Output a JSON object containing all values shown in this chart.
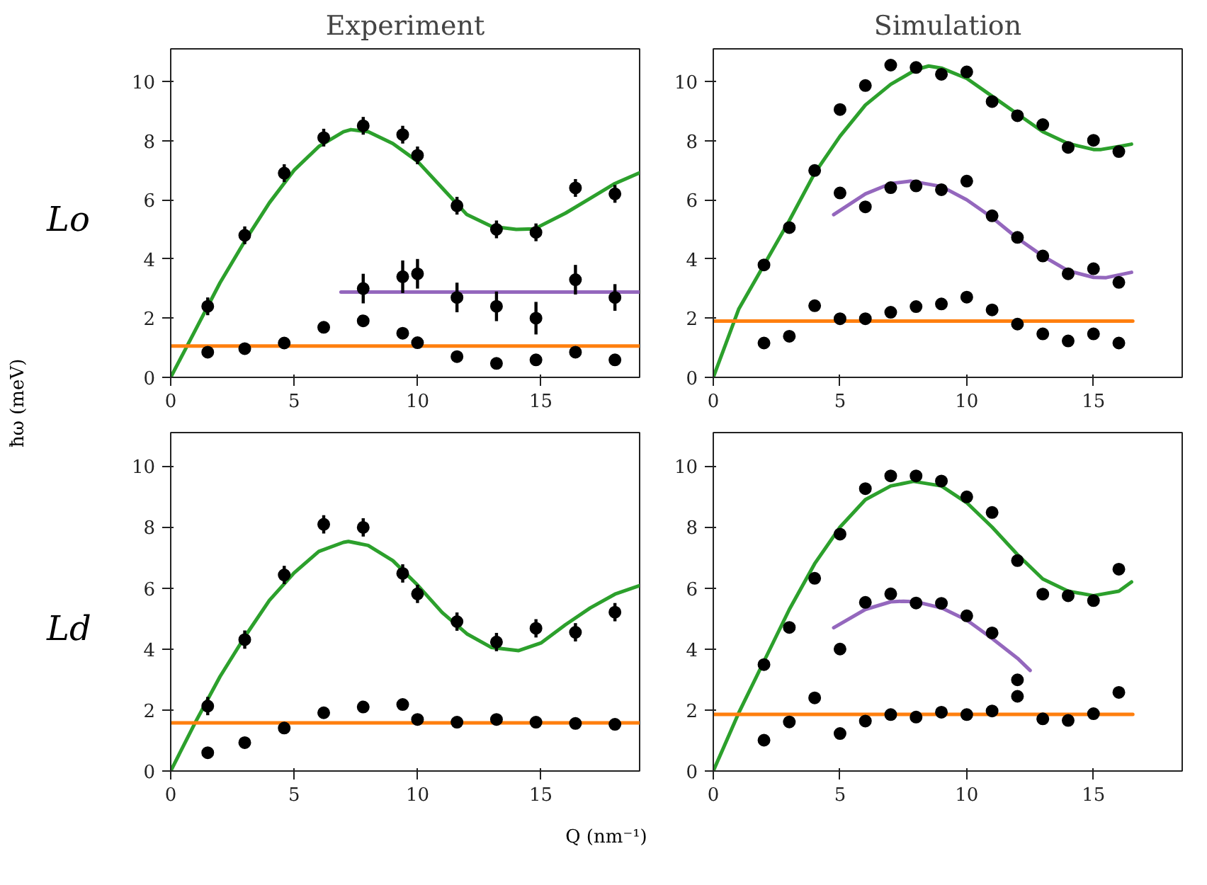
{
  "chart_data": [
    {
      "type": "scatter",
      "title": "Experiment",
      "ylabel": "Lo",
      "annotations": [
        "ħω (meV)"
      ],
      "marker": "circle",
      "xlim": [
        0,
        19
      ],
      "ylim": [
        0,
        11.1
      ],
      "xticks": [
        0,
        5,
        10,
        15
      ],
      "yticks": [
        0,
        2,
        4,
        6,
        8,
        10
      ],
      "series": [
        {
          "type": "line",
          "marker": "none",
          "color": "#2ca02c",
          "x": [
            0,
            1,
            2,
            3,
            4,
            5,
            6,
            7,
            7.3,
            8,
            9,
            10,
            11,
            12,
            13,
            14,
            14.75,
            16,
            17,
            18,
            19
          ],
          "values": [
            0,
            1.6,
            3.2,
            4.6,
            5.9,
            7.0,
            7.8,
            8.3,
            8.37,
            8.3,
            7.9,
            7.3,
            6.4,
            5.5,
            5.1,
            5.0,
            5.02,
            5.55,
            6.05,
            6.55,
            6.91
          ]
        },
        {
          "type": "line",
          "marker": "none",
          "color": "#ff7f0e",
          "x": [
            0,
            19
          ],
          "values": [
            1.06,
            1.06
          ]
        },
        {
          "type": "line",
          "marker": "none",
          "color": "#9467bd",
          "x": [
            6.9,
            19
          ],
          "values": [
            2.88,
            2.88
          ]
        },
        {
          "color": "#000000",
          "x": [
            1.5,
            3,
            4.6,
            6.2,
            7.8,
            9.4,
            10,
            11.6,
            13.2,
            14.8,
            16.4,
            18
          ],
          "values": [
            2.4,
            4.8,
            6.9,
            8.1,
            8.5,
            8.2,
            7.5,
            5.8,
            5.0,
            4.9,
            6.4,
            6.2
          ],
          "errors": [
            0.3,
            0.3,
            0.3,
            0.3,
            0.3,
            0.3,
            0.3,
            0.3,
            0.3,
            0.3,
            0.3,
            0.3
          ]
        },
        {
          "color": "#000000",
          "x": [
            7.8,
            9.4,
            10,
            11.6,
            13.2,
            14.8,
            16.4,
            18
          ],
          "values": [
            3.0,
            3.4,
            3.5,
            2.7,
            2.4,
            2.0,
            3.3,
            2.7
          ],
          "errors": [
            0.5,
            0.55,
            0.5,
            0.5,
            0.5,
            0.55,
            0.5,
            0.45
          ]
        },
        {
          "color": "#000000",
          "x": [
            1.5,
            3,
            4.6,
            6.2,
            7.8,
            9.4,
            10,
            11.6,
            13.2,
            14.8,
            16.4,
            18
          ],
          "values": [
            0.85,
            0.97,
            1.16,
            1.69,
            1.91,
            1.49,
            1.17,
            0.7,
            0.47,
            0.59,
            0.85,
            0.59
          ]
        }
      ]
    },
    {
      "type": "scatter",
      "title": "Simulation",
      "marker": "circle",
      "xlim": [
        0,
        18.5
      ],
      "ylim": [
        0,
        11.1
      ],
      "xticks": [
        0,
        5,
        10,
        15
      ],
      "yticks": [
        0,
        2,
        4,
        6,
        8,
        10
      ],
      "series": [
        {
          "type": "line",
          "marker": "none",
          "color": "#2ca02c",
          "x": [
            0,
            1,
            2,
            3,
            4,
            5,
            6,
            7,
            8,
            8.5,
            9,
            10,
            11,
            12,
            13,
            14,
            15,
            15.3,
            16,
            16.5
          ],
          "values": [
            0,
            2.3,
            3.8,
            5.3,
            6.9,
            8.15,
            9.2,
            9.9,
            10.4,
            10.52,
            10.45,
            10.1,
            9.5,
            8.9,
            8.3,
            7.9,
            7.7,
            7.7,
            7.8,
            7.88
          ]
        },
        {
          "type": "line",
          "marker": "none",
          "color": "#9467bd",
          "x": [
            4.75,
            6,
            7,
            7.8,
            9,
            10,
            11,
            12,
            13,
            14,
            15,
            15.5,
            16.5
          ],
          "values": [
            5.5,
            6.2,
            6.55,
            6.63,
            6.45,
            6.0,
            5.4,
            4.7,
            4.1,
            3.6,
            3.38,
            3.37,
            3.55
          ]
        },
        {
          "type": "line",
          "marker": "none",
          "color": "#ff7f0e",
          "x": [
            0,
            16.55
          ],
          "values": [
            1.9,
            1.9
          ]
        },
        {
          "color": "#000000",
          "x": [
            2,
            3,
            4,
            5,
            6,
            7,
            8,
            9,
            10,
            11,
            12,
            13,
            14,
            15,
            16
          ],
          "values": [
            3.8,
            5.06,
            6.99,
            9.05,
            9.86,
            10.55,
            10.47,
            10.24,
            10.32,
            9.32,
            8.84,
            8.54,
            7.77,
            8.01,
            7.63
          ]
        },
        {
          "color": "#000000",
          "x": [
            5,
            6,
            7,
            8,
            9,
            10,
            11,
            12,
            13,
            14,
            15,
            16
          ],
          "values": [
            6.23,
            5.76,
            6.41,
            6.47,
            6.34,
            6.63,
            5.46,
            4.73,
            4.1,
            3.5,
            3.67,
            3.21
          ]
        },
        {
          "color": "#000000",
          "x": [
            2,
            3,
            4,
            5,
            6,
            7,
            8,
            9,
            10,
            11,
            12,
            13,
            14,
            15,
            16
          ],
          "values": [
            1.16,
            1.39,
            2.42,
            1.98,
            1.98,
            2.2,
            2.39,
            2.48,
            2.71,
            2.28,
            1.8,
            1.47,
            1.23,
            1.47,
            1.16
          ]
        }
      ]
    },
    {
      "type": "scatter",
      "ylabel": "Ld",
      "annotations": [
        "Q (nm⁻¹)"
      ],
      "marker": "circle",
      "xlim": [
        0,
        19
      ],
      "ylim": [
        0,
        11.1
      ],
      "xticks": [
        0,
        5,
        10,
        15
      ],
      "yticks": [
        0,
        2,
        4,
        6,
        8,
        10
      ],
      "series": [
        {
          "type": "line",
          "marker": "none",
          "color": "#2ca02c",
          "x": [
            0,
            1,
            2,
            3,
            4,
            5,
            6,
            7,
            7.2,
            8,
            9,
            10,
            11,
            12,
            13,
            14.1,
            15,
            16,
            17,
            18,
            19
          ],
          "values": [
            0,
            1.6,
            3.1,
            4.4,
            5.6,
            6.5,
            7.2,
            7.5,
            7.53,
            7.4,
            6.9,
            6.1,
            5.2,
            4.5,
            4.05,
            3.95,
            4.2,
            4.8,
            5.35,
            5.8,
            6.08
          ]
        },
        {
          "type": "line",
          "marker": "none",
          "color": "#ff7f0e",
          "x": [
            0,
            19
          ],
          "values": [
            1.58,
            1.58
          ]
        },
        {
          "color": "#000000",
          "x": [
            1.5,
            3,
            4.6,
            6.2,
            7.8,
            9.4,
            10,
            11.6,
            13.2,
            14.8,
            16.4,
            18
          ],
          "values": [
            2.13,
            4.31,
            6.43,
            8.09,
            7.99,
            6.48,
            5.81,
            4.9,
            4.23,
            4.68,
            4.55,
            5.21
          ],
          "errors": [
            0.3,
            0.3,
            0.3,
            0.3,
            0.3,
            0.3,
            0.3,
            0.3,
            0.3,
            0.3,
            0.3,
            0.3
          ]
        },
        {
          "color": "#000000",
          "x": [
            1.5,
            3,
            4.6,
            6.2,
            7.8,
            9.4,
            10,
            11.6,
            13.2,
            14.8,
            16.4,
            18
          ],
          "values": [
            0.6,
            0.93,
            1.41,
            1.91,
            2.1,
            2.18,
            1.69,
            1.6,
            1.69,
            1.6,
            1.56,
            1.53
          ]
        }
      ]
    },
    {
      "type": "scatter",
      "marker": "circle",
      "xlim": [
        0,
        18.5
      ],
      "ylim": [
        0,
        11.1
      ],
      "xticks": [
        0,
        5,
        10,
        15
      ],
      "yticks": [
        0,
        2,
        4,
        6,
        8,
        10
      ],
      "series": [
        {
          "type": "line",
          "marker": "none",
          "color": "#2ca02c",
          "x": [
            0,
            1,
            2,
            3,
            4,
            5,
            6,
            7,
            7.9,
            9,
            10,
            11,
            12,
            13,
            14,
            15,
            16,
            16.5
          ],
          "values": [
            0,
            1.9,
            3.6,
            5.3,
            6.8,
            8.0,
            8.9,
            9.35,
            9.5,
            9.35,
            8.8,
            8.0,
            7.1,
            6.3,
            5.9,
            5.75,
            5.9,
            6.2
          ]
        },
        {
          "type": "line",
          "marker": "none",
          "color": "#9467bd",
          "x": [
            4.75,
            6,
            7,
            7.5,
            8,
            9,
            10,
            11,
            12,
            12.5
          ],
          "values": [
            4.7,
            5.3,
            5.55,
            5.57,
            5.55,
            5.35,
            4.95,
            4.35,
            3.7,
            3.3
          ]
        },
        {
          "type": "line",
          "marker": "none",
          "color": "#ff7f0e",
          "x": [
            0,
            16.55
          ],
          "values": [
            1.86,
            1.86
          ]
        },
        {
          "color": "#000000",
          "x": [
            2,
            3,
            4,
            5,
            6,
            7,
            8,
            9,
            10,
            11,
            12,
            13,
            14,
            15,
            16
          ],
          "values": [
            3.49,
            4.71,
            6.32,
            7.77,
            9.26,
            9.68,
            9.68,
            9.51,
            8.99,
            8.48,
            6.9,
            5.8,
            5.75,
            5.59,
            6.62
          ]
        },
        {
          "color": "#000000",
          "x": [
            5,
            6,
            7,
            8,
            9,
            10,
            11,
            12
          ],
          "values": [
            4.0,
            5.53,
            5.81,
            5.51,
            5.5,
            5.09,
            4.53,
            2.99
          ]
        },
        {
          "color": "#000000",
          "x": [
            2,
            3,
            4,
            5,
            6,
            7,
            8,
            9,
            10,
            11,
            12,
            13,
            14,
            15,
            16
          ],
          "values": [
            1.01,
            1.61,
            2.4,
            1.23,
            1.64,
            1.85,
            1.77,
            1.93,
            1.85,
            1.97,
            2.45,
            1.71,
            1.66,
            1.88,
            2.58
          ]
        }
      ]
    }
  ]
}
